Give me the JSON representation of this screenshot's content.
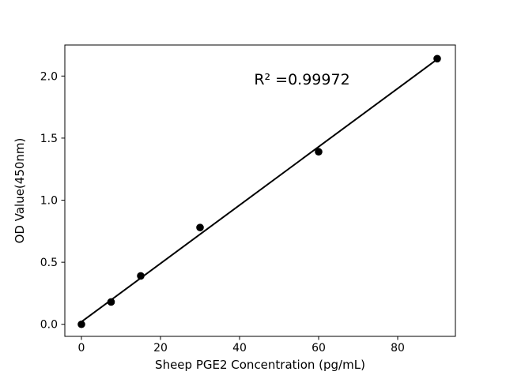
{
  "figure": {
    "background": "#ffffff",
    "foreground": "#000000"
  },
  "chart_data": {
    "type": "scatter",
    "title": "",
    "xlabel": "Sheep PGE2 Concentration (pg/mL)",
    "ylabel": "OD Value(450nm)",
    "series": [
      {
        "name": "standard-points",
        "x": [
          0,
          7.5,
          15,
          30,
          60,
          90
        ],
        "y": [
          0.0,
          0.18,
          0.39,
          0.78,
          1.39,
          2.14
        ],
        "marker": "circle",
        "marker_radius": 4.8,
        "color": "#000000"
      }
    ],
    "fit_line": {
      "x": [
        0,
        90
      ],
      "y": [
        0.02,
        2.135
      ],
      "color": "#000000",
      "width": 2
    },
    "annotation": {
      "text": "R² =0.99972",
      "x": 55.8,
      "y": 1.97
    },
    "xticks": {
      "values": [
        0,
        20,
        40,
        60,
        80
      ],
      "labels": [
        "0",
        "20",
        "40",
        "60",
        "80"
      ]
    },
    "yticks": {
      "values": [
        0,
        0.5,
        1.0,
        1.5,
        2.0
      ],
      "labels": [
        "0.0",
        "0.5",
        "1.0",
        "1.5",
        "2.0"
      ]
    },
    "xlim": [
      -4.2,
      94.6
    ],
    "ylim": [
      -0.097,
      2.25
    ],
    "grid": false,
    "legend": null
  }
}
